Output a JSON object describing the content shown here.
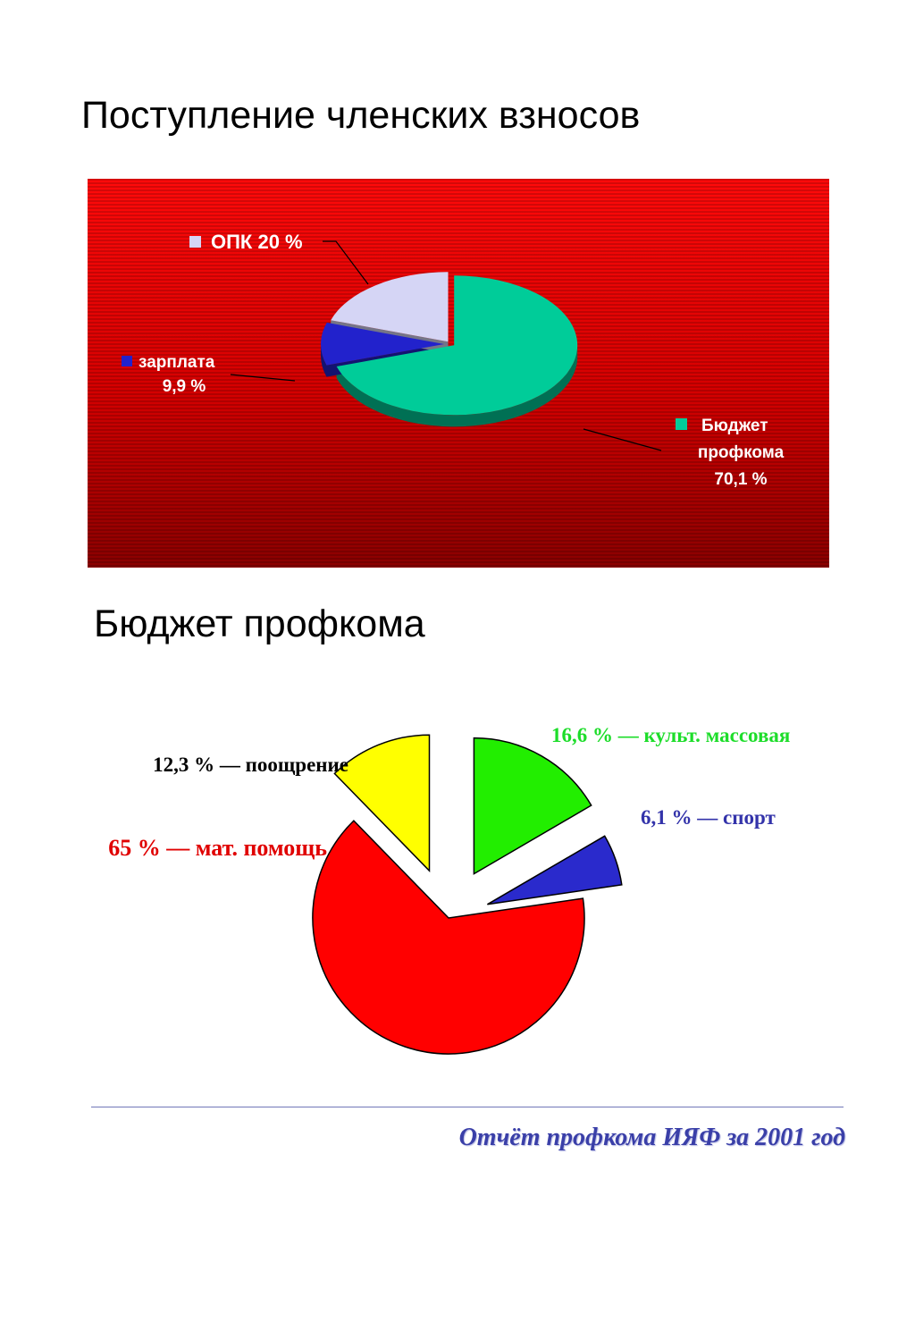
{
  "titles": {
    "chart1": "Поступление членских взносов",
    "chart2": "Бюджет профкома"
  },
  "chart_data": [
    {
      "type": "pie",
      "title": "Поступление членских взносов",
      "background": "#e00000",
      "slices": [
        {
          "label": "Бюджет профкома",
          "value": 70.1,
          "value_label": "70,1 %",
          "color": "#00cc99"
        },
        {
          "label": "зарплата",
          "value": 9.9,
          "value_label": "9,9 %",
          "color": "#2222cc"
        },
        {
          "label": "ОПК",
          "value": 20,
          "value_label": "20 %",
          "color": "#d5d5f5"
        }
      ],
      "labels": {
        "opk": "ОПК 20 %",
        "salary_line1": "зарплата",
        "salary_line2": "9,9 %",
        "budget_line1": "Бюджет",
        "budget_line2": "профкома",
        "budget_line3": "70,1 %"
      }
    },
    {
      "type": "pie",
      "title": "Бюджет профкома",
      "slices": [
        {
          "label": "культ. массовая",
          "value": 16.6,
          "color": "#22ee00",
          "text": "16,6 % — культ. массовая"
        },
        {
          "label": "спорт",
          "value": 6.1,
          "color": "#2a2acc",
          "text": "6,1 % — спорт"
        },
        {
          "label": "мат. помощь",
          "value": 65,
          "color": "#ff0000",
          "text": "65 % — мат. помощь"
        },
        {
          "label": "поощрение",
          "value": 12.3,
          "color": "#ffff00",
          "text": "12,3 % — поощрение"
        }
      ],
      "label_colors": {
        "culture": "#1ddd2a",
        "sport": "#3333aa",
        "aid": "#e00000",
        "reward": "#000000"
      }
    }
  ],
  "footer": {
    "text": "Отчёт профкома ИЯФ за 2001 год"
  }
}
